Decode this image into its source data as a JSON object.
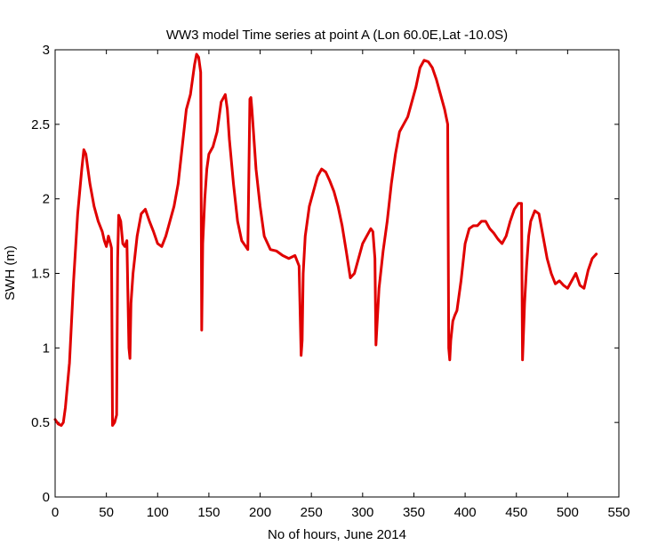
{
  "chart_data": {
    "type": "line",
    "title": "WW3 model Time series at point A (Lon 60.0E,Lat -10.0S)",
    "xlabel": "No of hours, June 2014",
    "ylabel": "SWH (m)",
    "xlim": [
      0,
      550
    ],
    "ylim": [
      0,
      3
    ],
    "xticks": [
      0,
      50,
      100,
      150,
      200,
      250,
      300,
      350,
      400,
      450,
      500,
      550
    ],
    "yticks": [
      0,
      0.5,
      1,
      1.5,
      2,
      2.5,
      3
    ],
    "ytick_labels": [
      "0",
      "0.5",
      "1",
      "1.5",
      "2",
      "2.5",
      "3"
    ],
    "grid": false,
    "legend": "none",
    "series": [
      {
        "color": "#e00000",
        "x": [
          0,
          3,
          6,
          8,
          10,
          14,
          18,
          22,
          26,
          28,
          30,
          34,
          38,
          42,
          46,
          48,
          50,
          52,
          54,
          55,
          56,
          58,
          60,
          61,
          62,
          64,
          66,
          68,
          70,
          72,
          73,
          74,
          76,
          80,
          84,
          88,
          92,
          96,
          100,
          104,
          108,
          112,
          116,
          120,
          124,
          128,
          132,
          136,
          138,
          140,
          142,
          143,
          144,
          146,
          148,
          150,
          154,
          158,
          162,
          166,
          168,
          170,
          174,
          178,
          182,
          186,
          188,
          190,
          191,
          192,
          194,
          196,
          200,
          204,
          210,
          216,
          222,
          228,
          234,
          238,
          240,
          241,
          242,
          244,
          248,
          252,
          256,
          260,
          264,
          268,
          272,
          276,
          280,
          284,
          288,
          292,
          296,
          300,
          304,
          308,
          310,
          312,
          313,
          314,
          316,
          320,
          324,
          328,
          332,
          336,
          340,
          344,
          348,
          352,
          356,
          360,
          364,
          368,
          372,
          376,
          380,
          383,
          384,
          385,
          386,
          388,
          390,
          392,
          396,
          400,
          404,
          408,
          412,
          416,
          420,
          424,
          428,
          432,
          436,
          440,
          444,
          448,
          452,
          454,
          455,
          456,
          458,
          460,
          462,
          464,
          468,
          472,
          476,
          480,
          484,
          488,
          492,
          496,
          500,
          504,
          508,
          512,
          516,
          520,
          524,
          528
        ],
        "values": [
          0.52,
          0.49,
          0.48,
          0.5,
          0.6,
          0.9,
          1.45,
          1.9,
          2.2,
          2.33,
          2.3,
          2.1,
          1.95,
          1.85,
          1.78,
          1.72,
          1.68,
          1.75,
          1.7,
          1.67,
          0.48,
          0.5,
          0.55,
          1.6,
          1.89,
          1.85,
          1.7,
          1.68,
          1.72,
          1.0,
          0.93,
          1.3,
          1.5,
          1.75,
          1.9,
          1.93,
          1.85,
          1.78,
          1.7,
          1.68,
          1.75,
          1.85,
          1.95,
          2.1,
          2.35,
          2.6,
          2.7,
          2.9,
          2.97,
          2.95,
          2.85,
          1.12,
          1.7,
          2.0,
          2.2,
          2.3,
          2.35,
          2.45,
          2.65,
          2.7,
          2.6,
          2.4,
          2.1,
          1.85,
          1.72,
          1.68,
          1.66,
          2.67,
          2.68,
          2.6,
          2.4,
          2.2,
          1.95,
          1.75,
          1.66,
          1.65,
          1.62,
          1.6,
          1.62,
          1.55,
          0.95,
          1.05,
          1.5,
          1.75,
          1.95,
          2.05,
          2.15,
          2.2,
          2.18,
          2.12,
          2.05,
          1.95,
          1.82,
          1.65,
          1.47,
          1.5,
          1.6,
          1.7,
          1.75,
          1.8,
          1.78,
          1.6,
          1.02,
          1.15,
          1.4,
          1.65,
          1.85,
          2.1,
          2.3,
          2.45,
          2.5,
          2.55,
          2.65,
          2.75,
          2.88,
          2.93,
          2.92,
          2.88,
          2.8,
          2.7,
          2.6,
          2.5,
          1.0,
          0.92,
          1.05,
          1.18,
          1.22,
          1.25,
          1.45,
          1.7,
          1.8,
          1.82,
          1.82,
          1.85,
          1.85,
          1.8,
          1.77,
          1.73,
          1.7,
          1.75,
          1.85,
          1.93,
          1.97,
          1.97,
          1.97,
          0.92,
          1.3,
          1.55,
          1.75,
          1.85,
          1.92,
          1.9,
          1.75,
          1.6,
          1.5,
          1.43,
          1.45,
          1.42,
          1.4,
          1.45,
          1.5,
          1.42,
          1.4,
          1.52,
          1.6,
          1.63
        ]
      }
    ]
  }
}
